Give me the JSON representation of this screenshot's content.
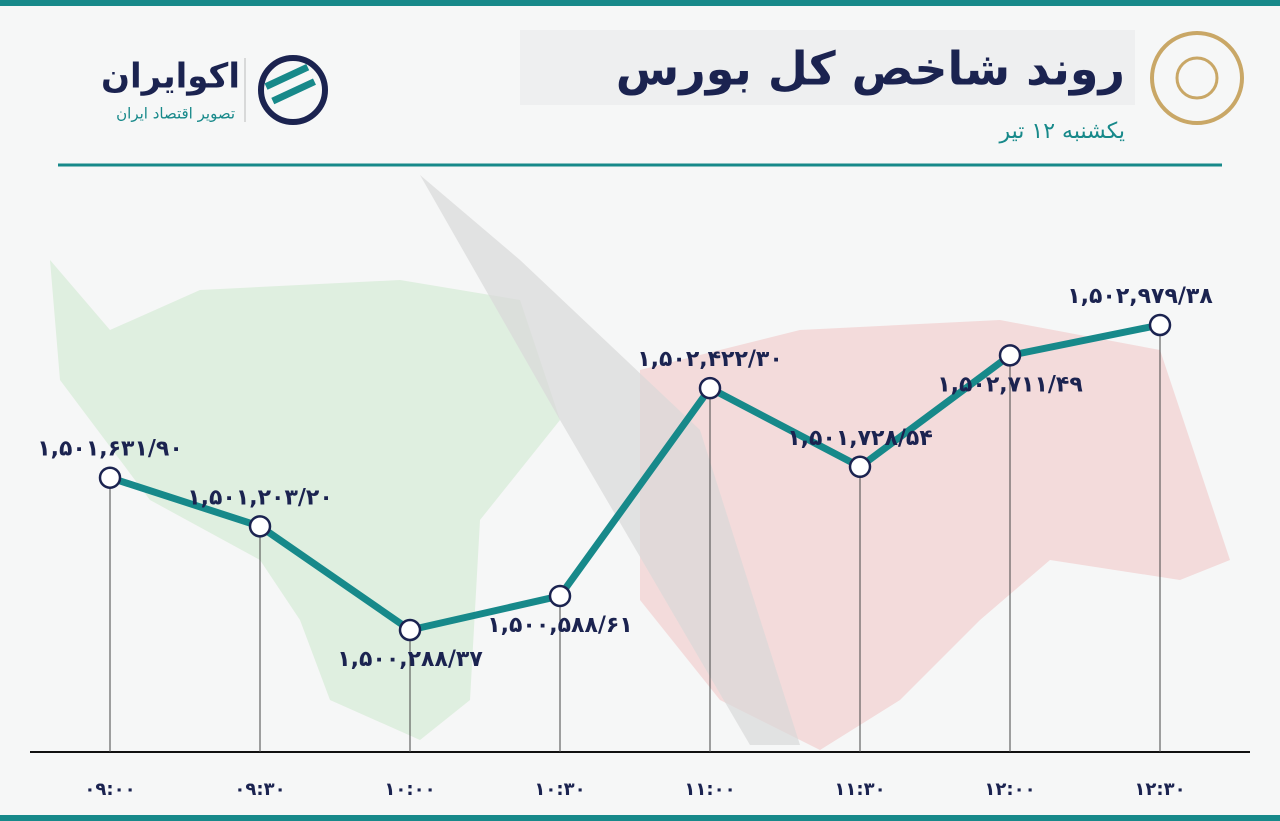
{
  "header": {
    "title": "روند شاخص کل بورس",
    "subtitle": "یکشنبه ۱۲ تیر",
    "brand": "اکوایران",
    "tagline": "تصویر اقتصاد ایران"
  },
  "chart_data": {
    "type": "line",
    "categories": [
      "۰۹:۰۰",
      "۰۹:۳۰",
      "۱۰:۰۰",
      "۱۰:۳۰",
      "۱۱:۰۰",
      "۱۱:۳۰",
      "۱۲:۰۰",
      "۱۲:۳۰"
    ],
    "series": [
      {
        "color": "#17898a",
        "values": [
          1501631.9,
          1501203.2,
          1500288.37,
          1500588.61,
          1502422.3,
          1501728.54,
          1502711.49,
          1502979.38
        ],
        "value_labels": [
          "۱,۵۰۱,۶۳۱/۹۰",
          "۱,۵۰۱,۲۰۳/۲۰",
          "۱,۵۰۰,۲۸۸/۳۷",
          "۱,۵۰۰,۵۸۸/۶۱",
          "۱,۵۰۲,۴۲۲/۳۰",
          "۱,۵۰۱,۷۲۸/۵۴",
          "۱,۵۰۲,۷۱۱/۴۹",
          "۱,۵۰۲,۹۷۹/۳۸"
        ]
      }
    ]
  }
}
